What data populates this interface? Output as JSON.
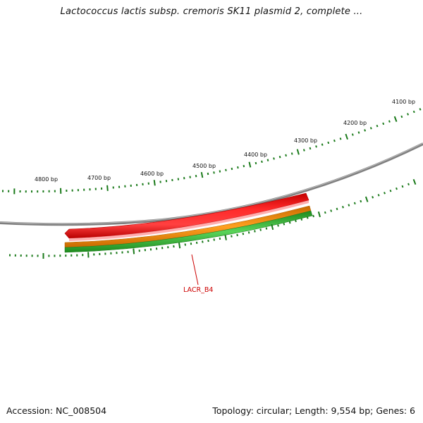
{
  "header": {
    "title": "Lactococcus lactis subsp. cremoris SK11 plasmid 2, complete ..."
  },
  "footer": {
    "accession": "Accession: NC_008504",
    "summary": "Topology: circular; Length: 9,554 bp; Genes: 6"
  },
  "map": {
    "tick_labels": [
      "4100 bp",
      "4200 bp",
      "4300 bp",
      "4400 bp",
      "4500 bp",
      "4600 bp",
      "4700 bp",
      "4800 bp"
    ],
    "gene_label": "LACR_B4",
    "colors": {
      "backbone": "#7a7a7a",
      "ticks": "#1a7a1a",
      "gene": "#ee1111",
      "orange_track": "#f08c00",
      "green_track": "#3cb83c",
      "gene_label": "#cc0000"
    }
  }
}
